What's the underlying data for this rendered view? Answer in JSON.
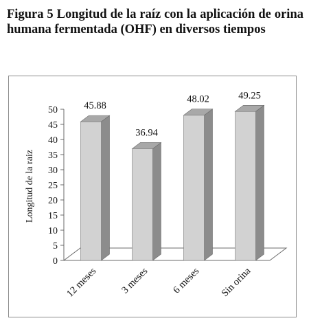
{
  "caption": "Figura 5 Longitud de la raíz con la aplicación de orina humana fermentada (OHF) en diversos tiempos",
  "chart_data": {
    "type": "bar",
    "style": "3d",
    "categories": [
      "12 meses",
      "3 meses",
      "6 meses",
      "Sin orina"
    ],
    "values": [
      45.88,
      36.94,
      48.02,
      49.25
    ],
    "data_labels": [
      "45.88",
      "36.94",
      "48.02",
      "49.25"
    ],
    "ylabel": "Longitud de la raiz",
    "xlabel": "",
    "title": "",
    "ylim": [
      0,
      50
    ],
    "yticks": [
      0,
      5,
      10,
      15,
      20,
      25,
      30,
      35,
      40,
      45,
      50
    ],
    "grid": false,
    "legend": "none",
    "colors": {
      "bar_front": "#d2d2d2",
      "bar_side": "#8c8c8c",
      "bar_top": "#a8a8a8",
      "axis": "#6b6b6b"
    }
  }
}
